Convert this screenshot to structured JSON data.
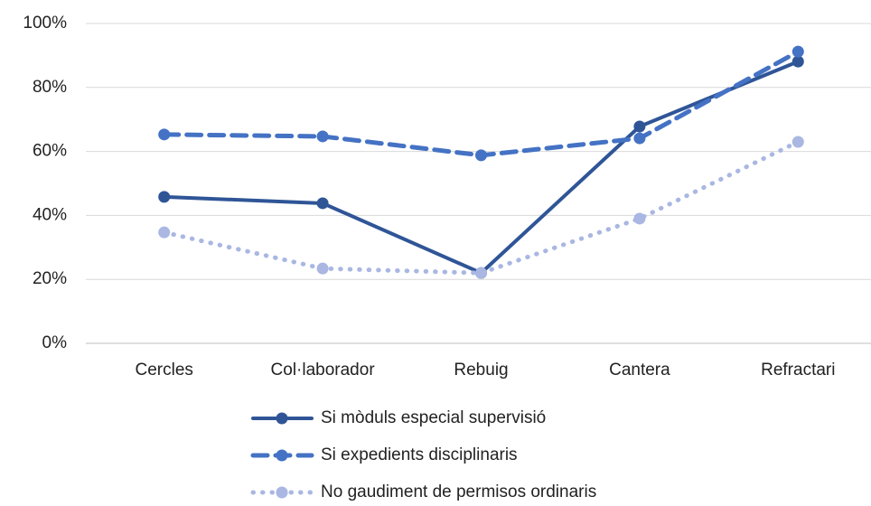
{
  "chart_data": {
    "type": "line",
    "categories": [
      "Cercles",
      "Col·laborador",
      "Rebuig",
      "Cantera",
      "Refractari"
    ],
    "series": [
      {
        "name": "Si mòduls especial supervisió",
        "color": "#2f5597",
        "style": "solid",
        "values": [
          45.8,
          43.8,
          22,
          67.8,
          88.1
        ]
      },
      {
        "name": "Si expedients disciplinaris",
        "color": "#4472c4",
        "style": "dashed",
        "values": [
          65.3,
          64.7,
          58.8,
          64.1,
          91.2
        ]
      },
      {
        "name": "No gaudiment de permisos ordinaris",
        "color": "#a9b7e2",
        "style": "dotted",
        "values": [
          34.7,
          23.4,
          22,
          39,
          63
        ]
      }
    ],
    "ylim": [
      0,
      100
    ],
    "yticks": [
      {
        "value": 0,
        "label": "0%"
      },
      {
        "value": 20,
        "label": "20%"
      },
      {
        "value": 40,
        "label": "40%"
      },
      {
        "value": 60,
        "label": "60%"
      },
      {
        "value": 80,
        "label": "80%"
      },
      {
        "value": 100,
        "label": "100%"
      }
    ],
    "grid": true,
    "legend": "bottom"
  }
}
